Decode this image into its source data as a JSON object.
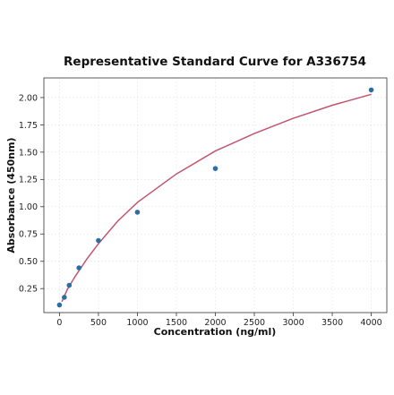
{
  "chart_data": {
    "type": "scatter",
    "title": "Representative Standard Curve for A336754",
    "xlabel": "Concentration (ng/ml)",
    "ylabel": "Absorbance (450nm)",
    "xlim": [
      -200,
      4200
    ],
    "ylim": [
      0.03,
      2.18
    ],
    "x_ticks": [
      0,
      500,
      1000,
      1500,
      2000,
      2500,
      3000,
      3500,
      4000
    ],
    "y_ticks": [
      0.25,
      0.5,
      0.75,
      1.0,
      1.25,
      1.5,
      1.75,
      2.0
    ],
    "grid": true,
    "points": {
      "x": [
        0,
        62.5,
        125,
        250,
        500,
        1000,
        2000,
        4000
      ],
      "y": [
        0.1,
        0.17,
        0.28,
        0.44,
        0.69,
        0.95,
        1.35,
        2.07
      ],
      "color": "#2e6da4"
    },
    "fit_curve": {
      "x": [
        31,
        100,
        200,
        350,
        500,
        750,
        1000,
        1500,
        2000,
        2500,
        3000,
        3500,
        4000
      ],
      "y": [
        0.13,
        0.24,
        0.36,
        0.52,
        0.66,
        0.87,
        1.04,
        1.3,
        1.51,
        1.67,
        1.81,
        1.93,
        2.03
      ],
      "color": "#c0566e"
    }
  }
}
